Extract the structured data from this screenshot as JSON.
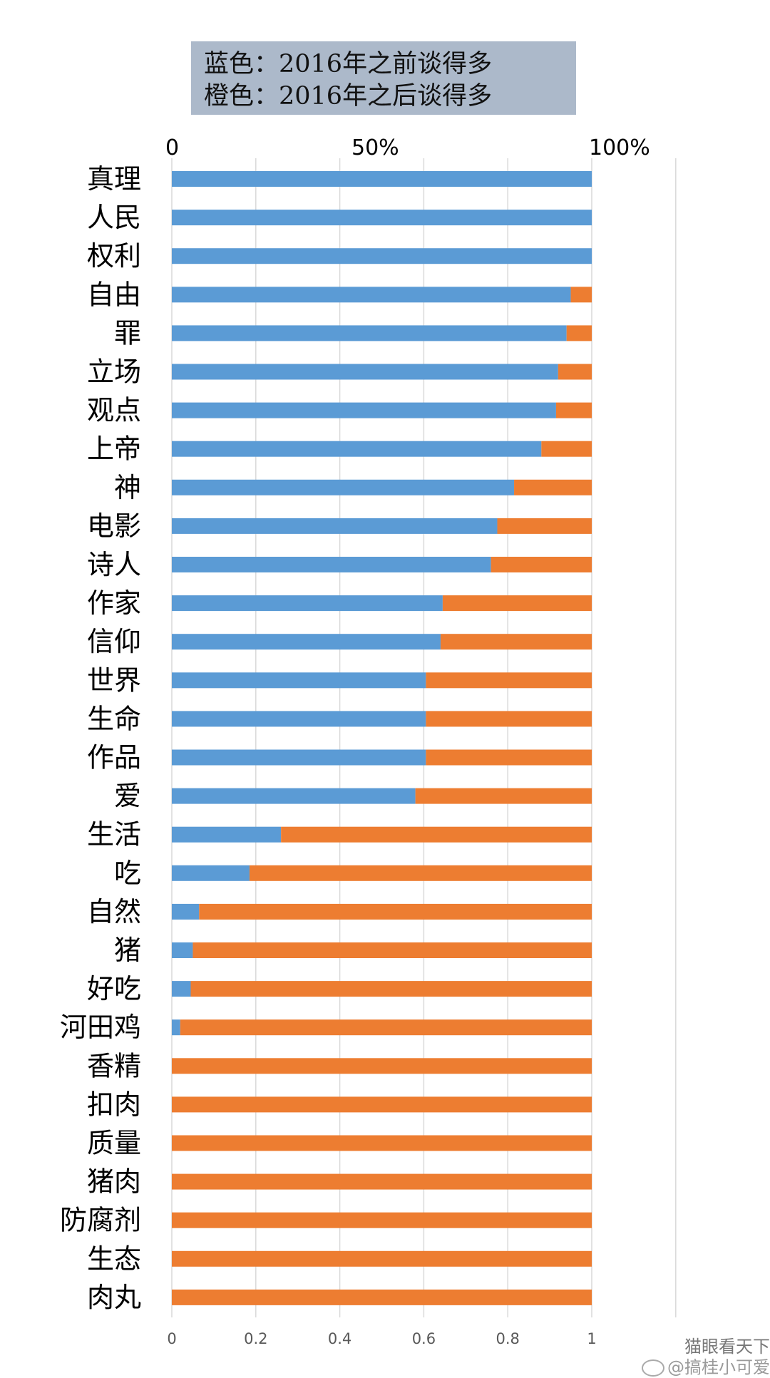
{
  "legend": {
    "line1": "蓝色：2016年之前谈得多",
    "line2": "橙色：2016年之后谈得多"
  },
  "top_axis": {
    "t0": "0",
    "t50": "50%",
    "t100": "100%"
  },
  "watermark": {
    "line1": "猫眼看天下",
    "line2": "@搞桂小可爱"
  },
  "colors": {
    "before": "#5b9bd5",
    "after": "#ed7d31",
    "grid": "#d9d9d9",
    "axis_text": "#595959"
  },
  "chart_data": {
    "type": "bar",
    "orientation": "horizontal",
    "stacked": true,
    "title": "",
    "xlabel": "",
    "ylabel": "",
    "xlim": [
      0,
      1.2
    ],
    "x_ticks": [
      "0",
      "0.2",
      "0.4",
      "0.6",
      "0.8",
      "1"
    ],
    "legend_position": "top",
    "grid": true,
    "categories": [
      "真理",
      "人民",
      "权利",
      "自由",
      "罪",
      "立场",
      "观点",
      "上帝",
      "神",
      "电影",
      "诗人",
      "作家",
      "信仰",
      "世界",
      "生命",
      "作品",
      "爱",
      "生活",
      "吃",
      "自然",
      "猪",
      "好吃",
      "河田鸡",
      "香精",
      "扣肉",
      "质量",
      "猪肉",
      "防腐剂",
      "生态",
      "肉丸"
    ],
    "series": [
      {
        "name": "蓝色：2016年之前谈得多",
        "values": [
          1.0,
          1.0,
          1.0,
          0.95,
          0.94,
          0.92,
          0.915,
          0.88,
          0.815,
          0.775,
          0.76,
          0.645,
          0.64,
          0.605,
          0.605,
          0.605,
          0.58,
          0.26,
          0.185,
          0.065,
          0.05,
          0.045,
          0.02,
          0,
          0,
          0,
          0,
          0,
          0,
          0
        ]
      },
      {
        "name": "橙色：2016年之后谈得多",
        "values": [
          0,
          0,
          0,
          0.05,
          0.06,
          0.08,
          0.085,
          0.12,
          0.185,
          0.225,
          0.24,
          0.355,
          0.36,
          0.395,
          0.395,
          0.395,
          0.42,
          0.74,
          0.815,
          0.935,
          0.95,
          0.955,
          0.98,
          1.0,
          1.0,
          1.0,
          1.0,
          1.0,
          1.0,
          1.0
        ]
      }
    ]
  }
}
